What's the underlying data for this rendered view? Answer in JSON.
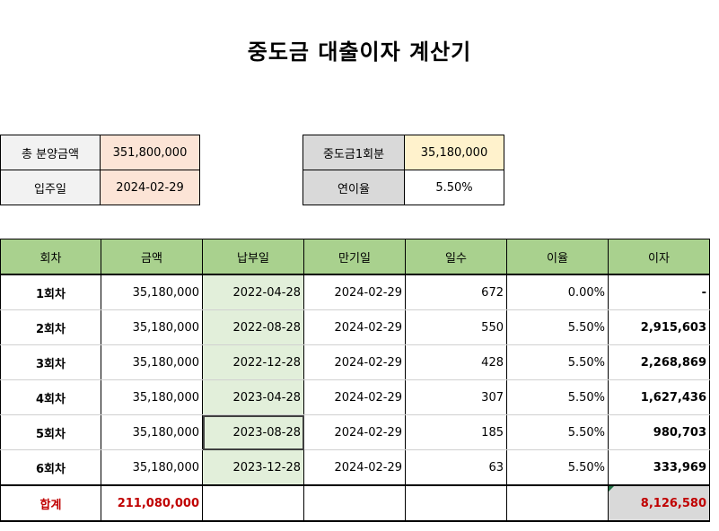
{
  "title": "중도금 대출이자 계산기",
  "summary_left": {
    "rows": [
      {
        "label": "총 분양금액",
        "value": "351,800,000"
      },
      {
        "label": "입주일",
        "value": "2024-02-29"
      }
    ]
  },
  "summary_right": {
    "rows": [
      {
        "label": "중도금1회분",
        "value": "35,180,000"
      },
      {
        "label": "연이율",
        "value": "5.50%"
      }
    ]
  },
  "table": {
    "headers": [
      "회차",
      "금액",
      "납부일",
      "만기일",
      "일수",
      "이율",
      "이자"
    ],
    "rows": [
      {
        "round": "1회차",
        "amount": "35,180,000",
        "pay_date": "2022-04-28",
        "due_date": "2024-02-29",
        "days": "672",
        "rate": "0.00%",
        "interest": "-"
      },
      {
        "round": "2회차",
        "amount": "35,180,000",
        "pay_date": "2022-08-28",
        "due_date": "2024-02-29",
        "days": "550",
        "rate": "5.50%",
        "interest": "2,915,603"
      },
      {
        "round": "3회차",
        "amount": "35,180,000",
        "pay_date": "2022-12-28",
        "due_date": "2024-02-29",
        "days": "428",
        "rate": "5.50%",
        "interest": "2,268,869"
      },
      {
        "round": "4회차",
        "amount": "35,180,000",
        "pay_date": "2023-04-28",
        "due_date": "2024-02-29",
        "days": "307",
        "rate": "5.50%",
        "interest": "1,627,436"
      },
      {
        "round": "5회차",
        "amount": "35,180,000",
        "pay_date": "2023-08-28",
        "due_date": "2024-02-29",
        "days": "185",
        "rate": "5.50%",
        "interest": "980,703"
      },
      {
        "round": "6회차",
        "amount": "35,180,000",
        "pay_date": "2023-12-28",
        "due_date": "2024-02-29",
        "days": "63",
        "rate": "5.50%",
        "interest": "333,969"
      }
    ],
    "total": {
      "label": "합계",
      "amount": "211,080,000",
      "interest": "8,126,580"
    }
  },
  "colors": {
    "header_green": "#a9d18e",
    "pay_date_green": "#e2efda",
    "peach": "#fce4d6",
    "cream": "#fff2cc",
    "total_red": "#c00000"
  }
}
